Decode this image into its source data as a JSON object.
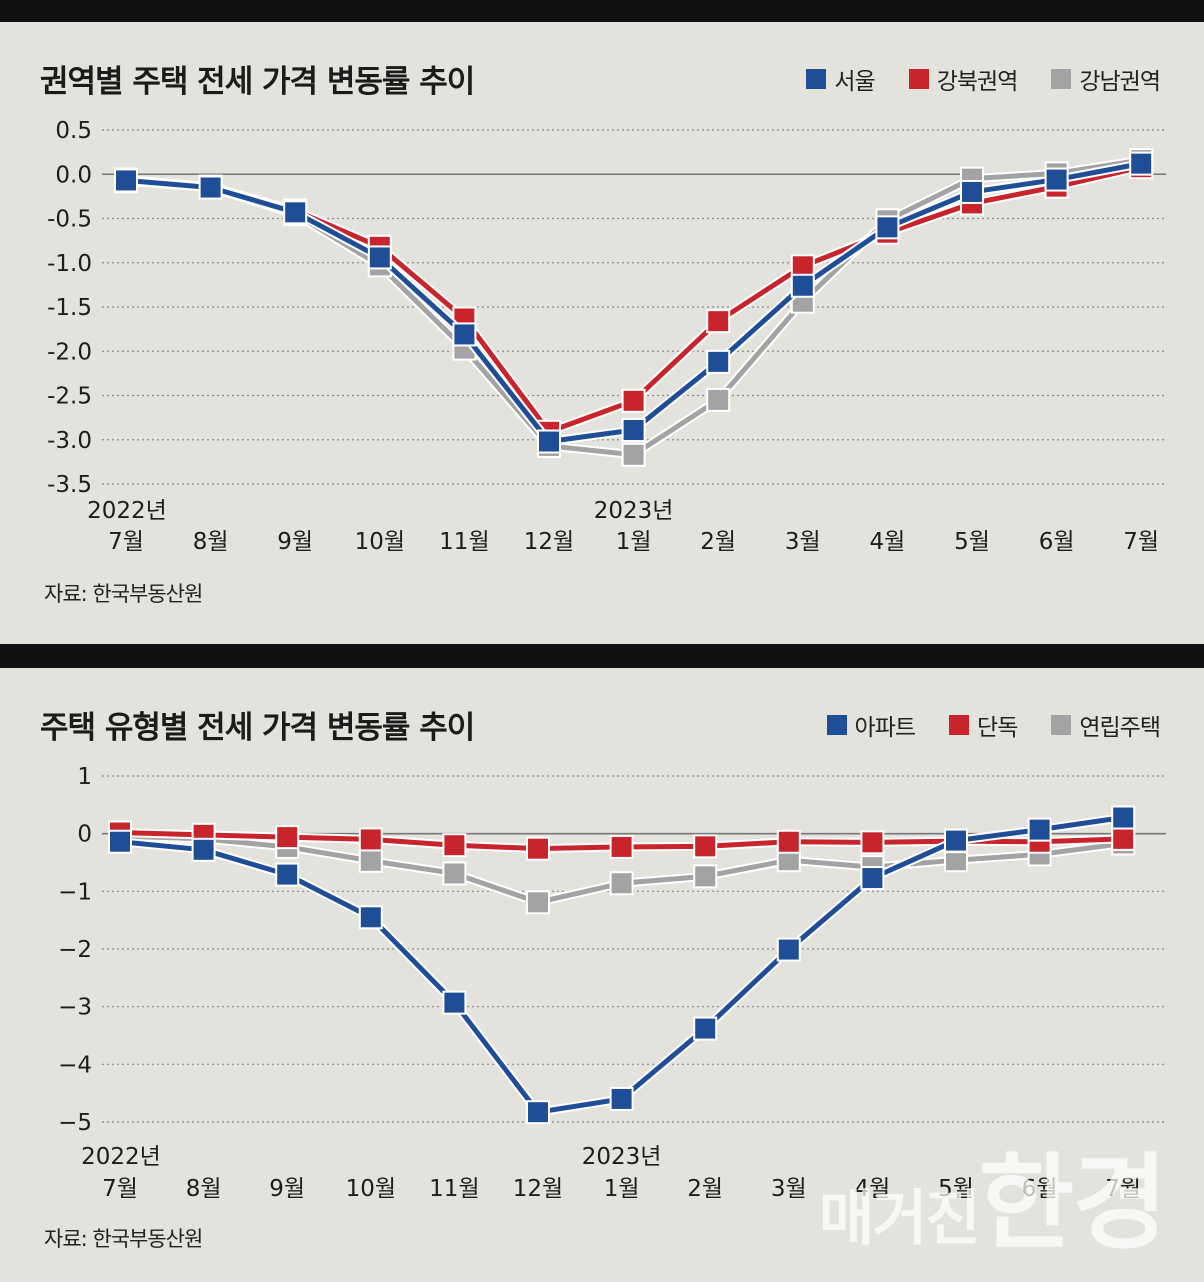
{
  "chart_data": [
    {
      "type": "line",
      "title": "권역별 주택 전세 가격 변동률 추이",
      "categories": [
        "7월",
        "8월",
        "9월",
        "10월",
        "11월",
        "12월",
        "1월",
        "2월",
        "3월",
        "4월",
        "5월",
        "6월",
        "7월"
      ],
      "year_labels": [
        {
          "text": "2022년",
          "index": 0
        },
        {
          "text": "2023년",
          "index": 6
        }
      ],
      "ylim": [
        -3.5,
        0.5
      ],
      "yticks": [
        "0.5",
        "0.0",
        "-0.5",
        "-1.0",
        "-1.5",
        "-2.0",
        "-2.5",
        "-3.0",
        "-3.5"
      ],
      "ytick_values": [
        0.5,
        0.0,
        -0.5,
        -1.0,
        -1.5,
        -2.0,
        -2.5,
        -3.0,
        -3.5
      ],
      "grid": "dotted horizontal",
      "legend_position": "top-right",
      "series": [
        {
          "name": "서울",
          "color": "#1f4e96",
          "values": [
            -0.07,
            -0.15,
            -0.43,
            -0.94,
            -1.81,
            -3.02,
            -2.89,
            -2.12,
            -1.26,
            -0.6,
            -0.2,
            -0.06,
            0.12
          ]
        },
        {
          "name": "강북권역",
          "color": "#c8242b",
          "values": [
            -0.06,
            -0.14,
            -0.41,
            -0.82,
            -1.63,
            -2.91,
            -2.56,
            -1.66,
            -1.04,
            -0.66,
            -0.33,
            -0.14,
            0.08
          ]
        },
        {
          "name": "강남권역",
          "color": "#a3a3a3",
          "values": [
            -0.08,
            -0.15,
            -0.45,
            -1.03,
            -1.97,
            -3.07,
            -3.17,
            -2.55,
            -1.44,
            -0.52,
            -0.05,
            0.01,
            0.16
          ]
        }
      ],
      "source": "자료: 한국부동산원"
    },
    {
      "type": "line",
      "title": "주택 유형별 전세 가격 변동률 추이",
      "categories": [
        "7월",
        "8월",
        "9월",
        "10월",
        "11월",
        "12월",
        "1월",
        "2월",
        "3월",
        "4월",
        "5월",
        "6월",
        "7월"
      ],
      "year_labels": [
        {
          "text": "2022년",
          "index": 0
        },
        {
          "text": "2023년",
          "index": 6
        }
      ],
      "ylim": [
        -5,
        1
      ],
      "yticks": [
        "1",
        "0",
        "−1",
        "−2",
        "−3",
        "−4",
        "−5"
      ],
      "ytick_values": [
        1,
        0,
        -1,
        -2,
        -3,
        -4,
        -5
      ],
      "grid": "dotted horizontal",
      "legend_position": "top-right",
      "series": [
        {
          "name": "아파트",
          "color": "#1f4e96",
          "values": [
            -0.14,
            -0.28,
            -0.71,
            -1.45,
            -2.93,
            -4.83,
            -4.6,
            -3.38,
            -2.01,
            -0.77,
            -0.12,
            0.07,
            0.28
          ]
        },
        {
          "name": "단독",
          "color": "#c8242b",
          "values": [
            0.02,
            -0.02,
            -0.06,
            -0.1,
            -0.2,
            -0.26,
            -0.23,
            -0.22,
            -0.14,
            -0.15,
            -0.13,
            -0.14,
            -0.09
          ]
        },
        {
          "name": "연립주택",
          "color": "#a3a3a3",
          "values": [
            -0.04,
            -0.09,
            -0.23,
            -0.47,
            -0.69,
            -1.19,
            -0.86,
            -0.74,
            -0.46,
            -0.58,
            -0.46,
            -0.36,
            -0.17
          ]
        }
      ],
      "source": "자료: 한국부동산원"
    }
  ],
  "watermark": {
    "small": "매거진",
    "big": "한경"
  }
}
